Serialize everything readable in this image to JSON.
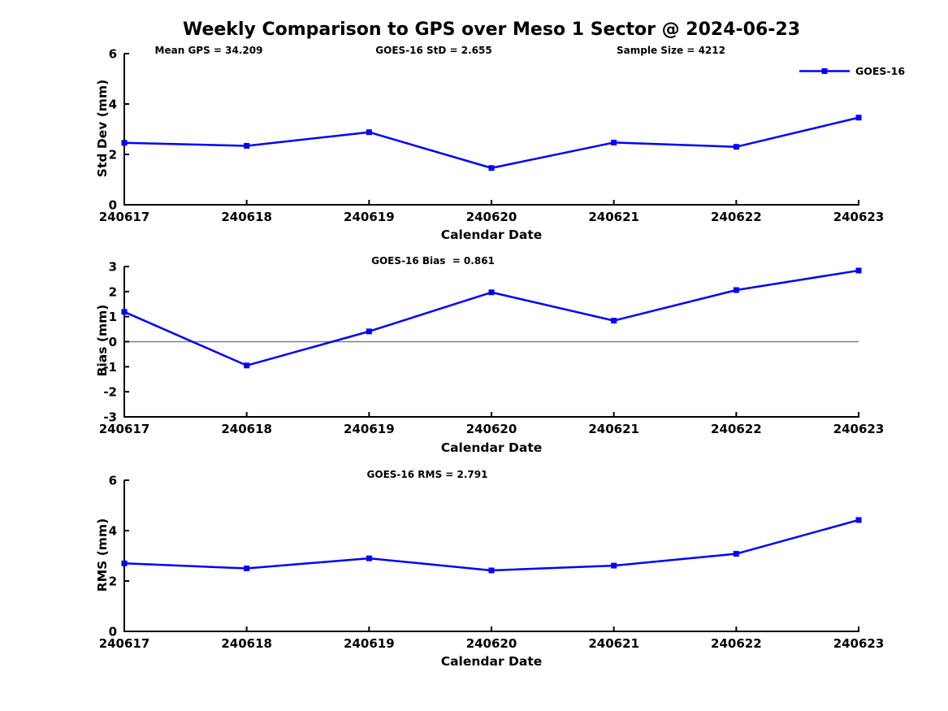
{
  "title": "Weekly Comparison to GPS over Meso 1 Sector @ 2024-06-23",
  "header_annotations": {
    "mean_gps": "Mean GPS = 34.209",
    "goes_std": "GOES-16 StD = 2.655",
    "sample_size": "Sample Size = 4212"
  },
  "legend": {
    "label": "GOES-16",
    "position": "top-right",
    "color": "#0000FF"
  },
  "colors": {
    "series": "#0000FF",
    "axis": "#000000",
    "zero_line": "#808080",
    "background": "#FFFFFF"
  },
  "chart_data": [
    {
      "type": "line",
      "subplot": "std-dev",
      "categories": [
        "240617",
        "240618",
        "240619",
        "240620",
        "240621",
        "240622",
        "240623"
      ],
      "series": [
        {
          "name": "GOES-16",
          "color": "#0000FF",
          "marker": "square",
          "values": [
            2.46,
            2.34,
            2.88,
            1.46,
            2.47,
            2.3,
            3.46
          ]
        }
      ],
      "xlabel": "Calendar Date",
      "ylabel": "Std Dev (mm)",
      "ylim": [
        0,
        6
      ],
      "yticks": [
        0,
        2,
        4,
        6
      ],
      "grid": false,
      "zero_line": false,
      "annotation": ""
    },
    {
      "type": "line",
      "subplot": "bias",
      "categories": [
        "240617",
        "240618",
        "240619",
        "240620",
        "240621",
        "240622",
        "240623"
      ],
      "series": [
        {
          "name": "GOES-16",
          "color": "#0000FF",
          "marker": "square",
          "values": [
            1.19,
            -0.95,
            0.41,
            1.97,
            0.84,
            2.06,
            2.84
          ]
        }
      ],
      "xlabel": "Calendar Date",
      "ylabel": "Bias (mm)",
      "ylim": [
        -3,
        3
      ],
      "yticks": [
        -3,
        -2,
        -1,
        0,
        1,
        2,
        3
      ],
      "grid": false,
      "zero_line": true,
      "annotation": "GOES-16 Bias  = 0.861"
    },
    {
      "type": "line",
      "subplot": "rms",
      "categories": [
        "240617",
        "240618",
        "240619",
        "240620",
        "240621",
        "240622",
        "240623"
      ],
      "series": [
        {
          "name": "GOES-16",
          "color": "#0000FF",
          "marker": "square",
          "values": [
            2.7,
            2.5,
            2.9,
            2.42,
            2.61,
            3.08,
            4.42
          ]
        }
      ],
      "xlabel": "Calendar Date",
      "ylabel": "RMS (mm)",
      "ylim": [
        0,
        6
      ],
      "yticks": [
        0,
        2,
        4,
        6
      ],
      "grid": false,
      "zero_line": false,
      "annotation": "GOES-16 RMS = 2.791"
    }
  ]
}
